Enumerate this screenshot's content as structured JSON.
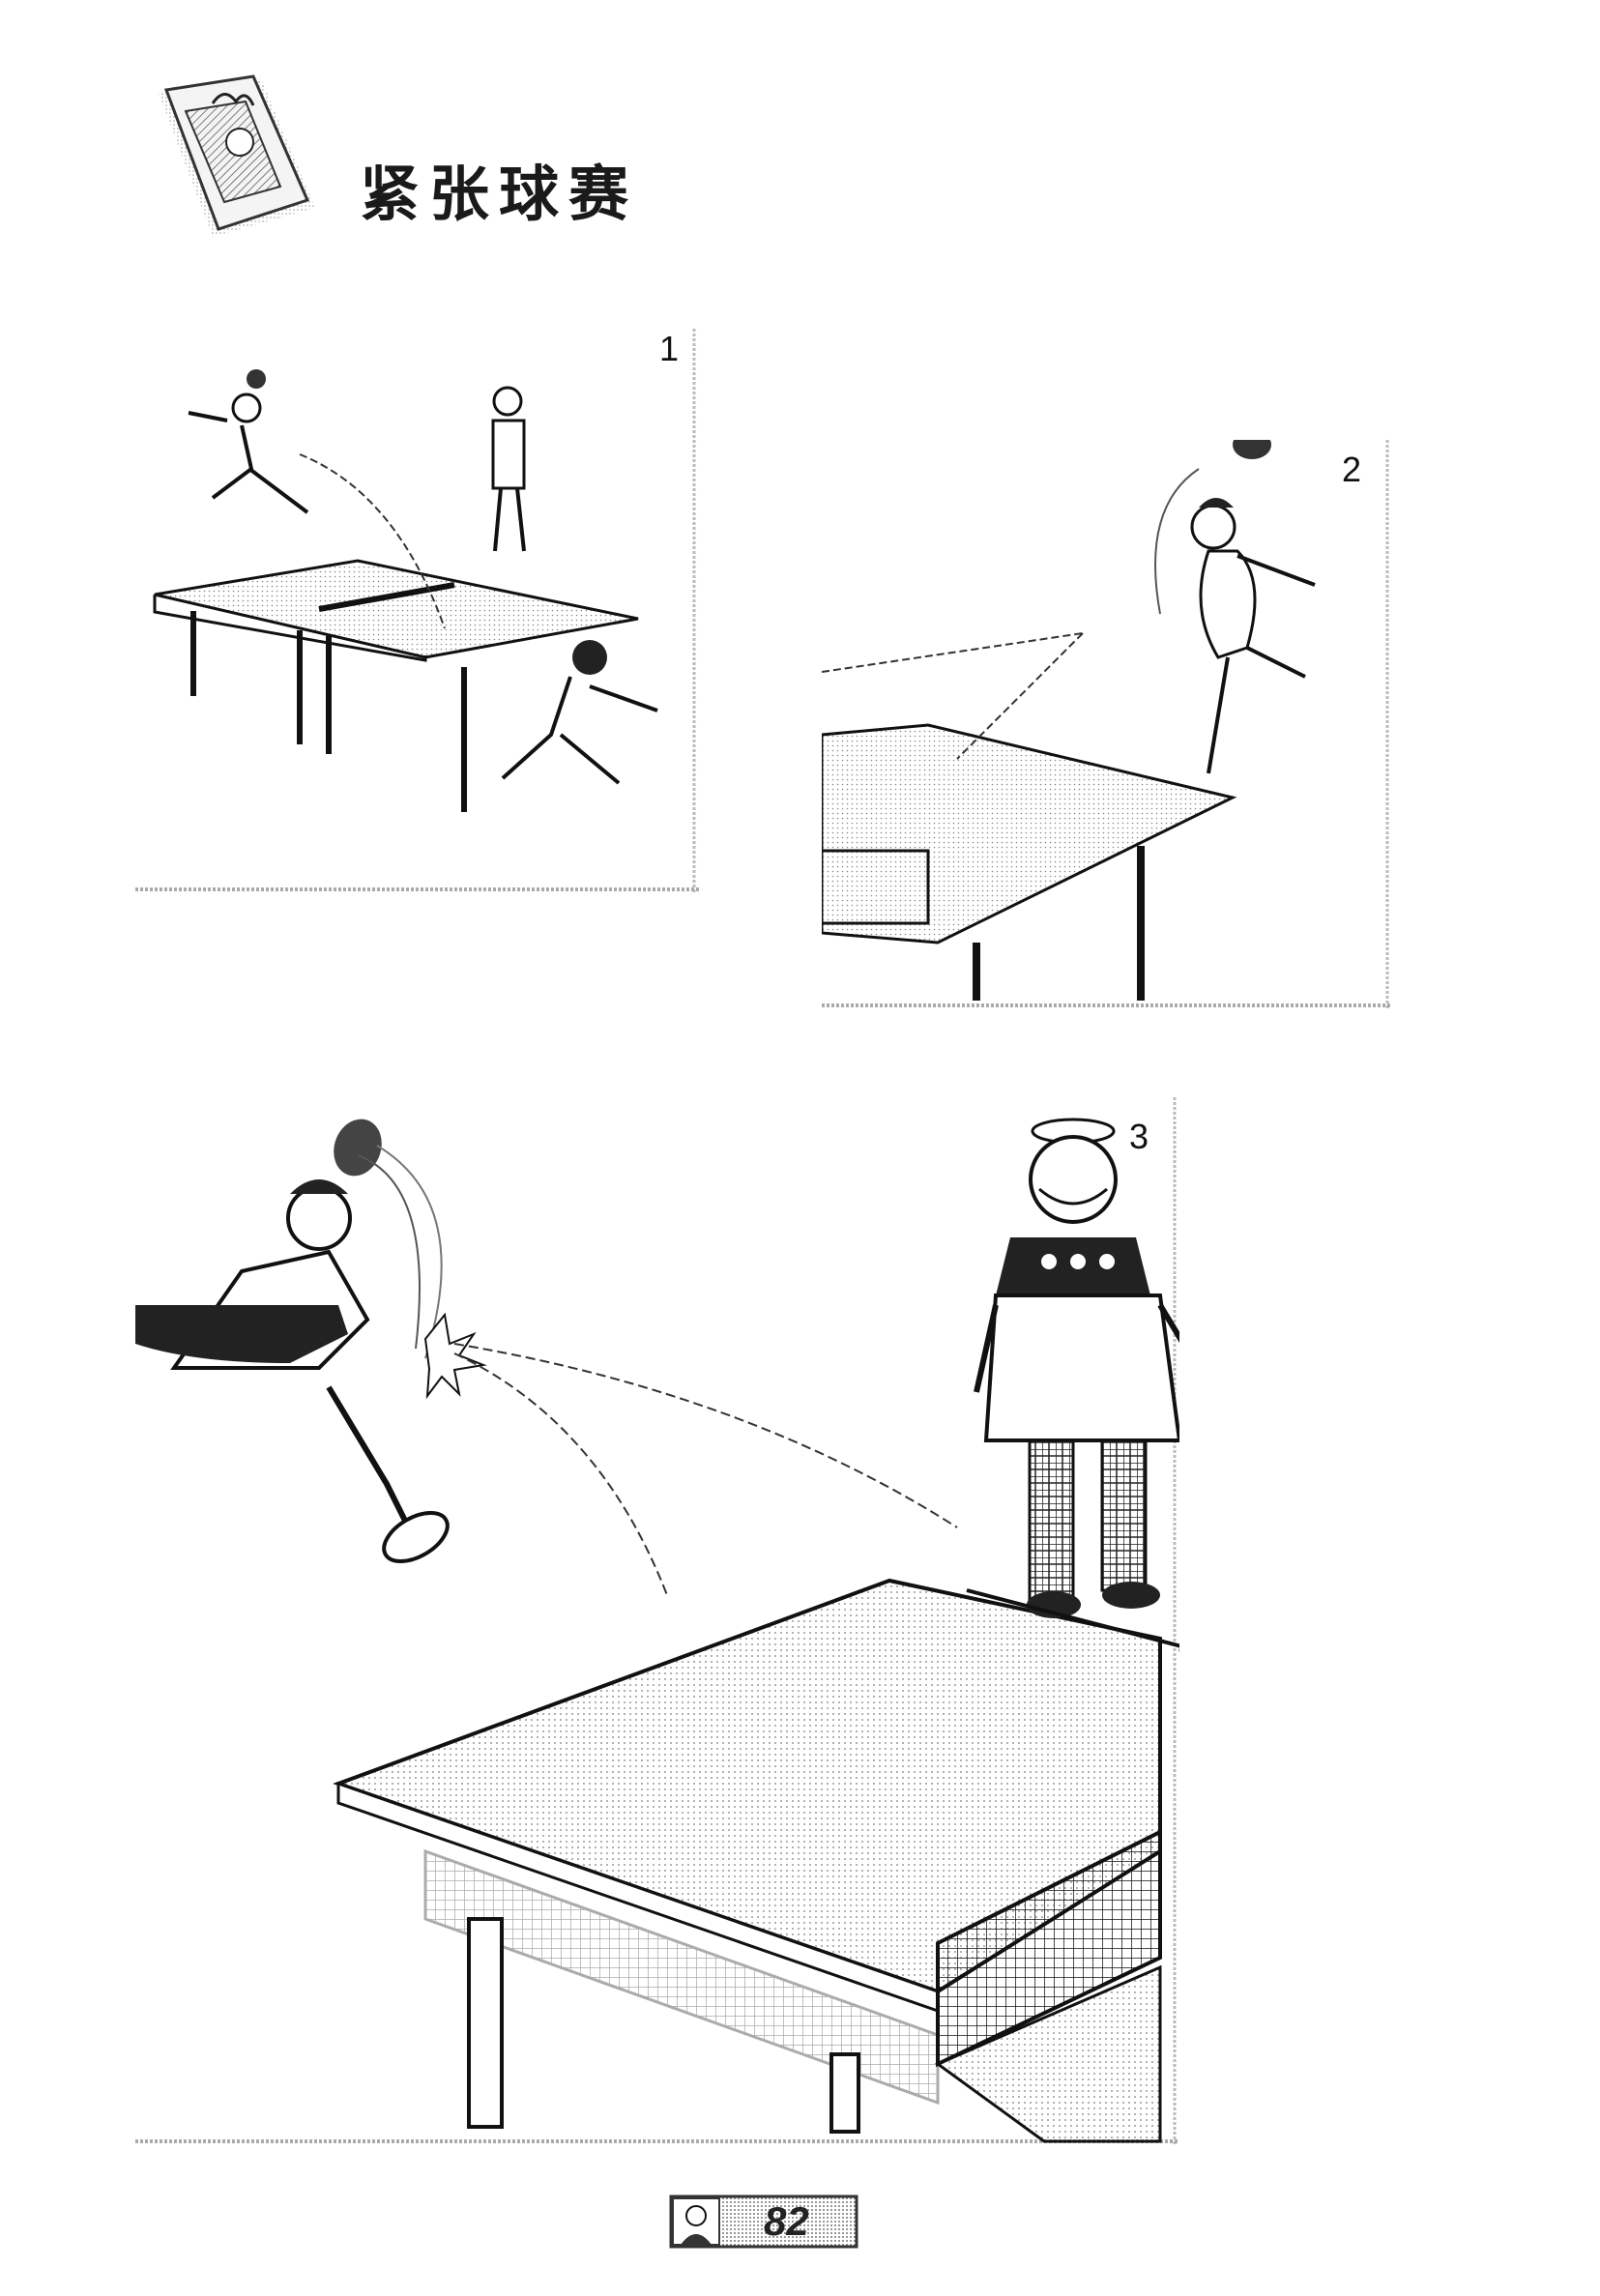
{
  "page": {
    "title": "紧张球赛",
    "page_number": "82"
  },
  "panels": [
    {
      "number": "1"
    },
    {
      "number": "2"
    },
    {
      "number": "3"
    }
  ]
}
